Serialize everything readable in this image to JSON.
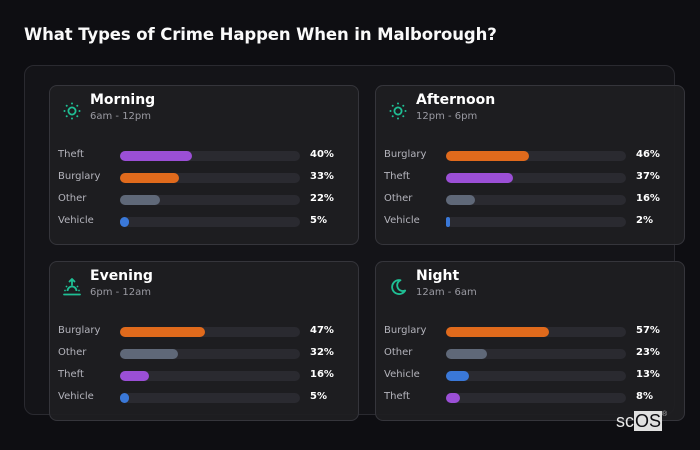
{
  "title": "What Types of Crime Happen When in Malborough?",
  "colors": {
    "theft": "#9b4fd6",
    "burglary": "#e06a1c",
    "other": "#5f6878",
    "vehicle": "#3a78d8",
    "icon_accent": "#1fbf94"
  },
  "cards": [
    {
      "name": "Morning",
      "range": "6am - 12pm",
      "icon": "sun-icon",
      "rows": [
        {
          "label": "Theft",
          "value": 40,
          "pct": "40%",
          "color": "#9b4fd6"
        },
        {
          "label": "Burglary",
          "value": 33,
          "pct": "33%",
          "color": "#e06a1c"
        },
        {
          "label": "Other",
          "value": 22,
          "pct": "22%",
          "color": "#5f6878"
        },
        {
          "label": "Vehicle",
          "value": 5,
          "pct": "5%",
          "color": "#3a78d8"
        }
      ]
    },
    {
      "name": "Afternoon",
      "range": "12pm - 6pm",
      "icon": "sun-icon",
      "rows": [
        {
          "label": "Burglary",
          "value": 46,
          "pct": "46%",
          "color": "#e06a1c"
        },
        {
          "label": "Theft",
          "value": 37,
          "pct": "37%",
          "color": "#9b4fd6"
        },
        {
          "label": "Other",
          "value": 16,
          "pct": "16%",
          "color": "#5f6878"
        },
        {
          "label": "Vehicle",
          "value": 2,
          "pct": "2%",
          "color": "#3a78d8"
        }
      ]
    },
    {
      "name": "Evening",
      "range": "6pm - 12am",
      "icon": "sunset-icon",
      "rows": [
        {
          "label": "Burglary",
          "value": 47,
          "pct": "47%",
          "color": "#e06a1c"
        },
        {
          "label": "Other",
          "value": 32,
          "pct": "32%",
          "color": "#5f6878"
        },
        {
          "label": "Theft",
          "value": 16,
          "pct": "16%",
          "color": "#9b4fd6"
        },
        {
          "label": "Vehicle",
          "value": 5,
          "pct": "5%",
          "color": "#3a78d8"
        }
      ]
    },
    {
      "name": "Night",
      "range": "12am - 6am",
      "icon": "moon-icon",
      "rows": [
        {
          "label": "Burglary",
          "value": 57,
          "pct": "57%",
          "color": "#e06a1c"
        },
        {
          "label": "Other",
          "value": 23,
          "pct": "23%",
          "color": "#5f6878"
        },
        {
          "label": "Vehicle",
          "value": 13,
          "pct": "13%",
          "color": "#3a78d8"
        },
        {
          "label": "Theft",
          "value": 8,
          "pct": "8%",
          "color": "#9b4fd6"
        }
      ]
    }
  ],
  "logo": {
    "prefix": "sc",
    "boxed": "OS",
    "mark": "®"
  },
  "chart_data": [
    {
      "type": "bar",
      "title": "Morning",
      "subtitle": "6am - 12pm",
      "orientation": "horizontal",
      "categories": [
        "Theft",
        "Burglary",
        "Other",
        "Vehicle"
      ],
      "values": [
        40,
        33,
        22,
        5
      ],
      "xlim": [
        0,
        100
      ],
      "unit": "%"
    },
    {
      "type": "bar",
      "title": "Afternoon",
      "subtitle": "12pm - 6pm",
      "orientation": "horizontal",
      "categories": [
        "Burglary",
        "Theft",
        "Other",
        "Vehicle"
      ],
      "values": [
        46,
        37,
        16,
        2
      ],
      "xlim": [
        0,
        100
      ],
      "unit": "%"
    },
    {
      "type": "bar",
      "title": "Evening",
      "subtitle": "6pm - 12am",
      "orientation": "horizontal",
      "categories": [
        "Burglary",
        "Other",
        "Theft",
        "Vehicle"
      ],
      "values": [
        47,
        32,
        16,
        5
      ],
      "xlim": [
        0,
        100
      ],
      "unit": "%"
    },
    {
      "type": "bar",
      "title": "Night",
      "subtitle": "12am - 6am",
      "orientation": "horizontal",
      "categories": [
        "Burglary",
        "Other",
        "Vehicle",
        "Theft"
      ],
      "values": [
        57,
        23,
        13,
        8
      ],
      "xlim": [
        0,
        100
      ],
      "unit": "%"
    }
  ]
}
